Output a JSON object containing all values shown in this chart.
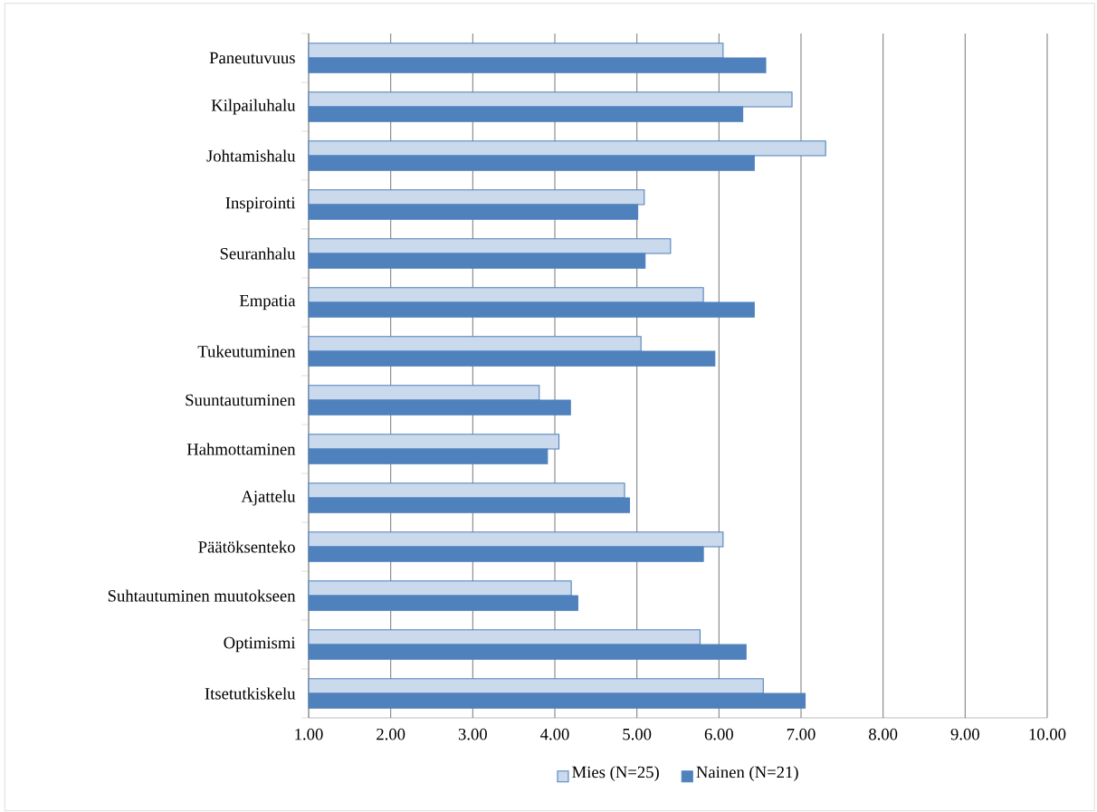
{
  "chart_data": {
    "type": "bar",
    "orientation": "horizontal",
    "categories": [
      "Paneutuvuus",
      "Kilpailuhalu",
      "Johtamishalu",
      "Inspirointi",
      "Seuranhalu",
      "Empatia",
      "Tukeutuminen",
      "Suuntautuminen",
      "Hahmottaminen",
      "Ajattelu",
      "Päätöksenteko",
      "Suhtautuminen muutokseen",
      "Optimismi",
      "Itsetutkiskelu"
    ],
    "series": [
      {
        "name": "Mies (N=25)",
        "color": "#4f81bd",
        "values": [
          6.05,
          6.89,
          7.3,
          5.09,
          5.41,
          5.81,
          5.05,
          3.81,
          4.05,
          4.85,
          6.05,
          4.2,
          5.77,
          6.54
        ]
      },
      {
        "name": "Nainen (N=21)",
        "color": "#4f81bd",
        "values": [
          6.57,
          6.29,
          6.43,
          5.01,
          5.1,
          6.43,
          5.95,
          4.19,
          3.91,
          4.91,
          5.81,
          4.28,
          6.33,
          7.05
        ]
      }
    ],
    "xlim": [
      1,
      10
    ],
    "xticks": [
      {
        "value": 1,
        "label": "1.00"
      },
      {
        "value": 2,
        "label": "2.00"
      },
      {
        "value": 3,
        "label": "3.00"
      },
      {
        "value": 4,
        "label": "4.00"
      },
      {
        "value": 5,
        "label": "5.00"
      },
      {
        "value": 6,
        "label": "6.00"
      },
      {
        "value": 7,
        "label": "7.00"
      },
      {
        "value": 8,
        "label": "8.00"
      },
      {
        "value": 9,
        "label": "9.00"
      },
      {
        "value": 10,
        "label": "10.00"
      }
    ],
    "grid": "x",
    "legend": "bottom"
  }
}
